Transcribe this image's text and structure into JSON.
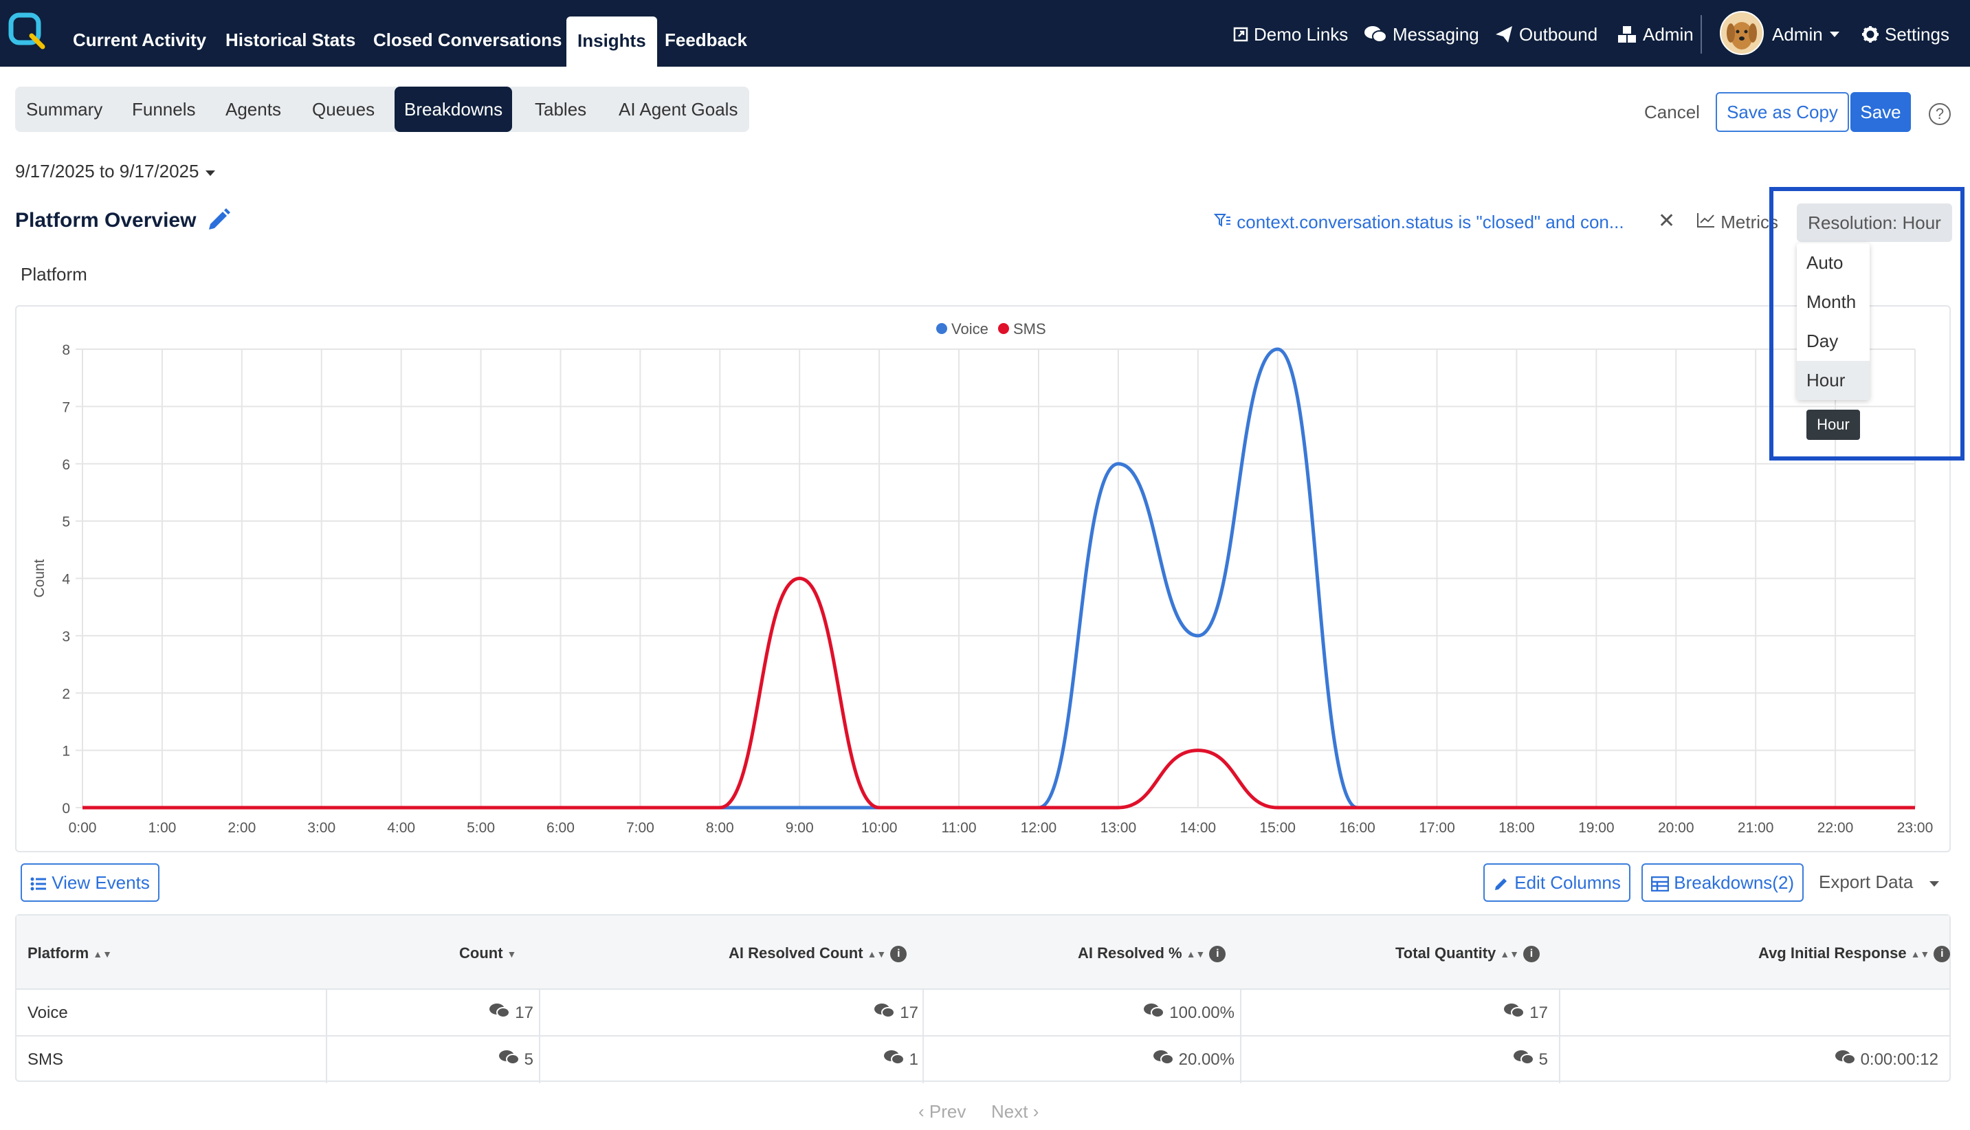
{
  "nav": {
    "items": [
      "Current Activity",
      "Historical Stats",
      "Closed Conversations",
      "Insights",
      "Feedback"
    ],
    "active": "Insights",
    "right": {
      "demo_links": "Demo Links",
      "messaging": "Messaging",
      "outbound": "Outbound",
      "admin_link": "Admin",
      "user_name": "Admin",
      "settings": "Settings"
    }
  },
  "subtabs": {
    "items": [
      "Summary",
      "Funnels",
      "Agents",
      "Queues",
      "Breakdowns",
      "Tables",
      "AI Agent Goals"
    ],
    "active": "Breakdowns"
  },
  "actions": {
    "cancel": "Cancel",
    "save_as_copy": "Save as Copy",
    "save": "Save",
    "help": "?"
  },
  "date_range": "9/17/2025 to 9/17/2025",
  "page_title": "Platform Overview",
  "filter_text": "context.conversation.status is \"closed\" and con...",
  "metrics_label": "Metrics",
  "section_label": "Platform",
  "resolution": {
    "button_label": "Resolution: Hour",
    "options": [
      "Auto",
      "Month",
      "Day",
      "Hour"
    ],
    "hovered": "Hour",
    "tooltip": "Hour"
  },
  "chart_data": {
    "type": "line",
    "title": "",
    "xlabel": "",
    "ylabel": "Count",
    "ylim": [
      0,
      8
    ],
    "yticks": [
      "0",
      "1",
      "2",
      "3",
      "4",
      "5",
      "6",
      "7",
      "8"
    ],
    "categories": [
      "0:00",
      "1:00",
      "2:00",
      "3:00",
      "4:00",
      "5:00",
      "6:00",
      "7:00",
      "8:00",
      "9:00",
      "10:00",
      "11:00",
      "12:00",
      "13:00",
      "14:00",
      "15:00",
      "16:00",
      "17:00",
      "18:00",
      "19:00",
      "20:00",
      "21:00",
      "22:00",
      "23:00"
    ],
    "series": [
      {
        "name": "Voice",
        "color": "#3a78d6",
        "values": [
          0,
          0,
          0,
          0,
          0,
          0,
          0,
          0,
          0,
          0,
          0,
          0,
          0,
          6,
          3,
          8,
          0,
          0,
          0,
          0,
          0,
          0,
          0,
          0
        ]
      },
      {
        "name": "SMS",
        "color": "#e0102a",
        "values": [
          0,
          0,
          0,
          0,
          0,
          0,
          0,
          0,
          0,
          4,
          0,
          0,
          0,
          0,
          1,
          0,
          0,
          0,
          0,
          0,
          0,
          0,
          0,
          0
        ]
      }
    ],
    "legend": "top-center",
    "grid": true
  },
  "table_actions": {
    "view_events": "View Events",
    "edit_columns": "Edit Columns",
    "breakdowns": "Breakdowns(2)",
    "export": "Export Data"
  },
  "table": {
    "columns": [
      "Platform",
      "Count",
      "AI Resolved Count",
      "AI Resolved %",
      "Total Quantity",
      "Avg Initial Response"
    ],
    "rows": [
      {
        "platform": "Voice",
        "count": "17",
        "ai_resolved_count": "17",
        "ai_resolved_pct": "100.00%",
        "total_quantity": "17",
        "avg_initial_response": ""
      },
      {
        "platform": "SMS",
        "count": "5",
        "ai_resolved_count": "1",
        "ai_resolved_pct": "20.00%",
        "total_quantity": "5",
        "avg_initial_response": "0:00:00:12"
      }
    ]
  },
  "pager": {
    "prev": "Prev",
    "next": "Next"
  },
  "colors": {
    "nav_bg": "#0f1f3d",
    "accent": "#2a6fdb",
    "voice": "#3a78d6",
    "sms": "#e0102a"
  }
}
